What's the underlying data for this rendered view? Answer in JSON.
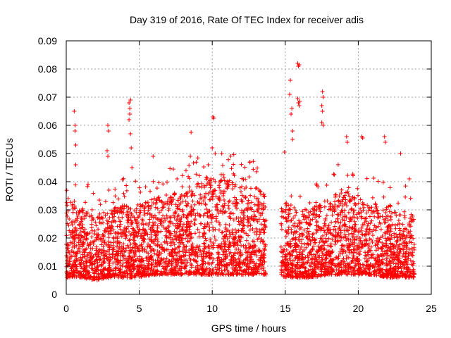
{
  "chart_data": {
    "type": "scatter",
    "title": "Day 319 of 2016, Rate Of TEC Index for receiver adis",
    "xlabel": "GPS time / hours",
    "ylabel": "ROTI / TECUs",
    "xlim": [
      0,
      25
    ],
    "ylim": [
      0,
      0.09
    ],
    "x_ticks": [
      0,
      5,
      10,
      15,
      20,
      25
    ],
    "x_tick_labels": [
      "0",
      "5",
      "10",
      "15",
      "20",
      "25"
    ],
    "y_ticks": [
      0,
      0.01,
      0.02,
      0.03,
      0.04,
      0.05,
      0.06,
      0.07,
      0.08,
      0.09
    ],
    "y_tick_labels": [
      "0",
      "0.01",
      "0.02",
      "0.03",
      "0.04",
      "0.05",
      "0.06",
      "0.07",
      "0.08",
      "0.09"
    ],
    "grid": true,
    "marker": "+",
    "color": "#ff0000",
    "data_gap_hours": [
      13.7,
      14.7
    ],
    "series": [
      {
        "name": "ROTI",
        "envelope": {
          "x": [
            0,
            1,
            2,
            3,
            4,
            5,
            6,
            7,
            8,
            9,
            10,
            11,
            12,
            13,
            13.6,
            14.8,
            15,
            16,
            17,
            18,
            19,
            20,
            21,
            22,
            23,
            23.8
          ],
          "base": [
            0.006,
            0.006,
            0.005,
            0.006,
            0.006,
            0.006,
            0.007,
            0.007,
            0.007,
            0.007,
            0.007,
            0.007,
            0.007,
            0.007,
            0.007,
            0.006,
            0.006,
            0.006,
            0.006,
            0.007,
            0.007,
            0.007,
            0.007,
            0.006,
            0.006,
            0.006
          ],
          "top": [
            0.026,
            0.022,
            0.02,
            0.022,
            0.024,
            0.024,
            0.026,
            0.028,
            0.028,
            0.032,
            0.034,
            0.033,
            0.031,
            0.03,
            0.028,
            0.024,
            0.025,
            0.022,
            0.023,
            0.026,
            0.03,
            0.025,
            0.024,
            0.024,
            0.022,
            0.02
          ]
        },
        "outliers": [
          [
            0.55,
            0.065
          ],
          [
            0.6,
            0.06
          ],
          [
            0.6,
            0.058
          ],
          [
            0.65,
            0.053
          ],
          [
            0.65,
            0.046
          ],
          [
            2.85,
            0.06
          ],
          [
            2.9,
            0.058
          ],
          [
            2.8,
            0.051
          ],
          [
            2.85,
            0.049
          ],
          [
            4.3,
            0.068
          ],
          [
            4.35,
            0.066
          ],
          [
            4.4,
            0.069
          ],
          [
            4.35,
            0.064
          ],
          [
            4.3,
            0.062
          ],
          [
            4.4,
            0.057
          ],
          [
            4.45,
            0.052
          ],
          [
            4.5,
            0.045
          ],
          [
            5.95,
            0.049
          ],
          [
            8.55,
            0.0575
          ],
          [
            8.5,
            0.049
          ],
          [
            10.05,
            0.063
          ],
          [
            10.1,
            0.0625
          ],
          [
            10.0,
            0.052
          ],
          [
            10.2,
            0.05
          ],
          [
            15.3,
            0.071
          ],
          [
            15.35,
            0.076
          ],
          [
            15.4,
            0.064
          ],
          [
            15.45,
            0.066
          ],
          [
            15.5,
            0.058
          ],
          [
            15.5,
            0.055
          ],
          [
            14.95,
            0.0505
          ],
          [
            15.85,
            0.082
          ],
          [
            15.9,
            0.081
          ],
          [
            15.95,
            0.0815
          ],
          [
            15.9,
            0.068
          ],
          [
            15.95,
            0.067
          ],
          [
            16.0,
            0.0685
          ],
          [
            15.85,
            0.0695
          ],
          [
            17.55,
            0.072
          ],
          [
            17.6,
            0.07
          ],
          [
            17.5,
            0.067
          ],
          [
            17.55,
            0.065
          ],
          [
            17.5,
            0.061
          ],
          [
            17.6,
            0.06
          ],
          [
            19.2,
            0.056
          ],
          [
            19.25,
            0.054
          ],
          [
            20.25,
            0.056
          ],
          [
            20.3,
            0.0555
          ],
          [
            21.8,
            0.056
          ],
          [
            21.85,
            0.054
          ],
          [
            22.9,
            0.05
          ],
          [
            23.5,
            0.041
          ]
        ]
      }
    ]
  }
}
